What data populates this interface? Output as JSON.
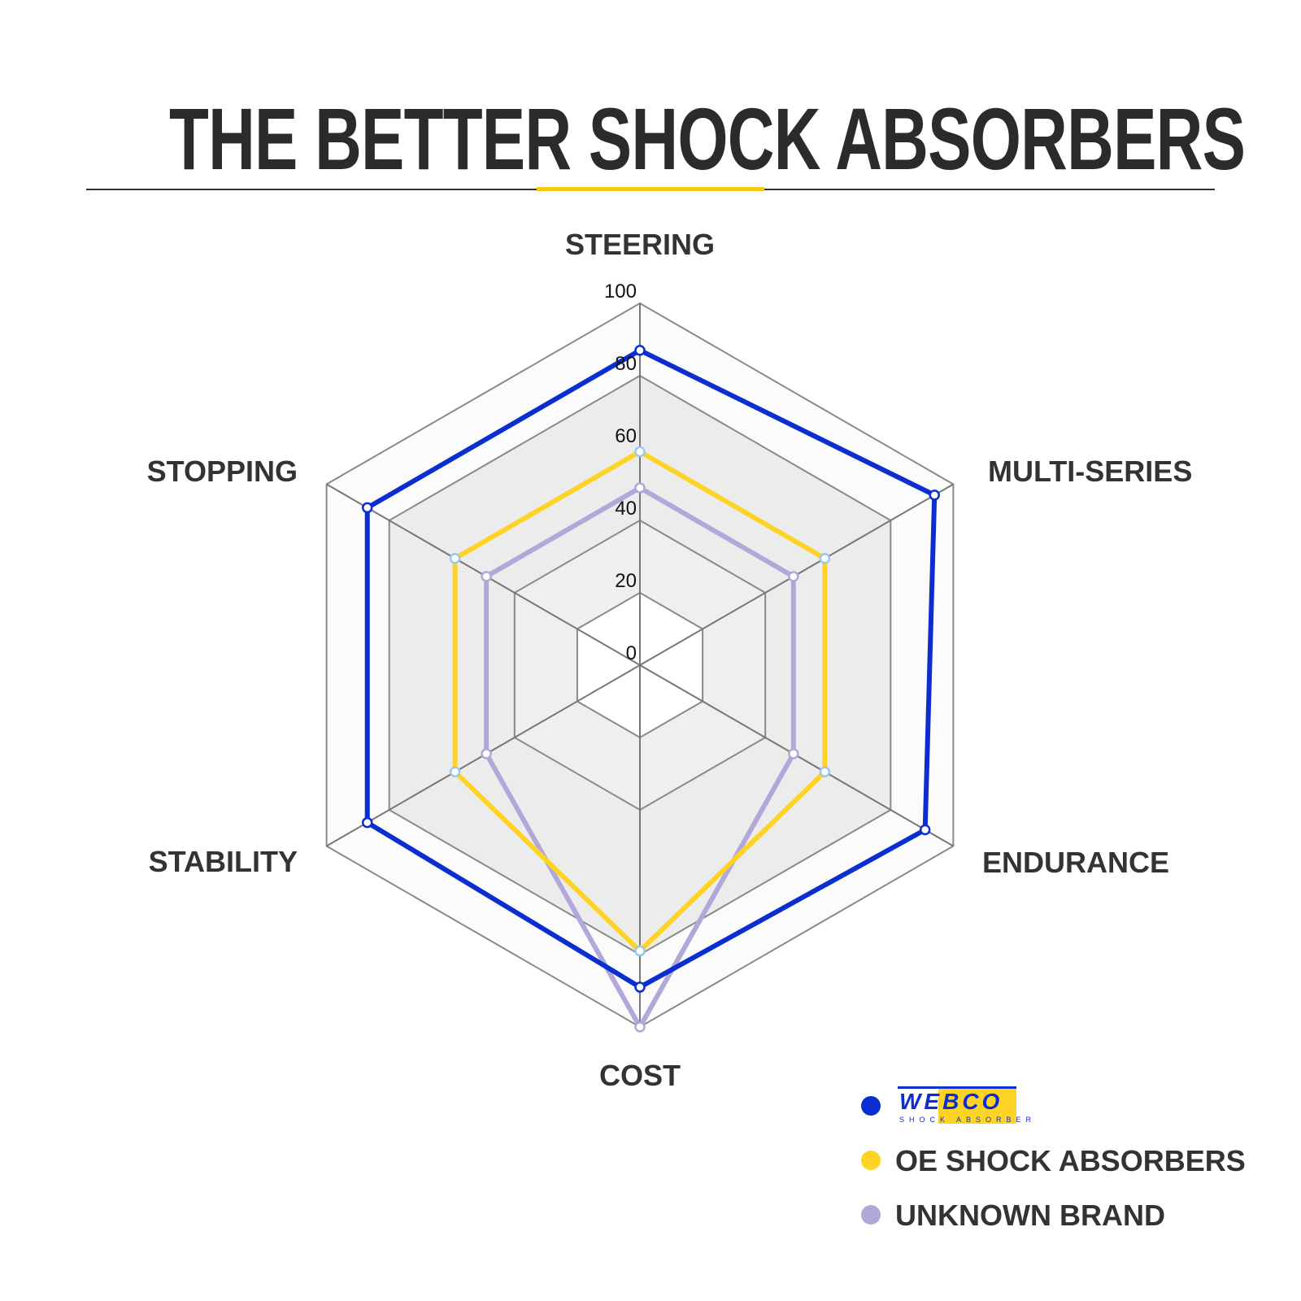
{
  "chart_data": {
    "type": "radar",
    "title": "THE BETTER SHOCK ABSORBERS",
    "categories": [
      "STEERING",
      "MULTI-SERIES",
      "ENDURANCE",
      "COST",
      "STABILITY",
      "STOPPING"
    ],
    "rlim": [
      0,
      100
    ],
    "ticks": [
      "0",
      "20",
      "40",
      "60",
      "80",
      "100"
    ],
    "tick_values": [
      0,
      20,
      40,
      60,
      80,
      100
    ],
    "legend_position": "bottom-right",
    "series": [
      {
        "name": "WEBCO",
        "logo_subtext": "SHOCK ABSORBER",
        "color": "#0a2ecf",
        "values": [
          87,
          94,
          91,
          89,
          87,
          87
        ]
      },
      {
        "name": "OE SHOCK ABSORBERS",
        "color": "#fdd426",
        "values": [
          59,
          59,
          59,
          79,
          59,
          59
        ]
      },
      {
        "name": "UNKNOWN BRAND",
        "color": "#b2a7d9",
        "values": [
          49,
          49,
          49,
          100,
          49,
          49
        ]
      }
    ]
  }
}
